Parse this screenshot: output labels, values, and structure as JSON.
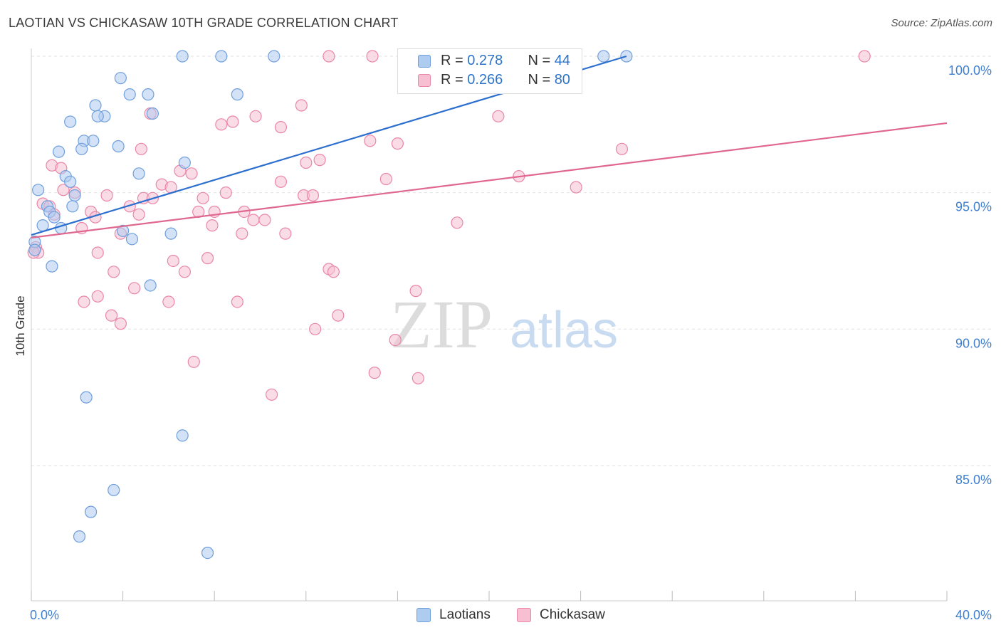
{
  "header": {
    "title": "LAOTIAN VS CHICKASAW 10TH GRADE CORRELATION CHART",
    "source": "Source: ZipAtlas.com"
  },
  "watermark": {
    "zip": "ZIP",
    "atlas": "atlas"
  },
  "legend_top": {
    "rows": [
      {
        "r_label": "R = ",
        "r_value": "0.278",
        "n_label": "N = ",
        "n_value": "44"
      },
      {
        "r_label": "R = ",
        "r_value": "0.266",
        "n_label": "N = ",
        "n_value": "80"
      }
    ]
  },
  "legend_bottom": {
    "items": [
      {
        "label": "Laotians"
      },
      {
        "label": "Chickasaw"
      }
    ]
  },
  "colors": {
    "blue_fill": "#aecbf0",
    "blue_stroke": "#6f9fdc",
    "blue_line": "#2c6fcf",
    "pink_fill": "#f6c0d2",
    "pink_stroke": "#ea86a8",
    "pink_line": "#e0688f",
    "axis_label": "#3f7fd0",
    "grid": "#e2e2e2"
  },
  "chart_data": {
    "type": "scatter",
    "title": "LAOTIAN VS CHICKASAW 10TH GRADE CORRELATION CHART",
    "xlabel": "",
    "ylabel": "10th Grade",
    "xlim": [
      0,
      40
    ],
    "ylim": [
      80.5,
      101
    ],
    "x_tick_labels": [
      {
        "value": 0,
        "label": "0.0%"
      },
      {
        "value": 40,
        "label": "40.0%"
      }
    ],
    "y_tick_labels": [
      {
        "value": 85,
        "label": "85.0%"
      },
      {
        "value": 90,
        "label": "90.0%"
      },
      {
        "value": 95,
        "label": "95.0%"
      },
      {
        "value": 100,
        "label": "100.0%"
      }
    ],
    "grid": true,
    "series": [
      {
        "name": "Laotians",
        "R": 0.278,
        "N": 44,
        "trend": {
          "x": [
            0,
            26.0
          ],
          "y": [
            93.45,
            100.0
          ]
        },
        "points": [
          [
            6.6,
            100.0
          ],
          [
            8.3,
            100.0
          ],
          [
            10.6,
            100.0
          ],
          [
            25.0,
            100.0
          ],
          [
            26.0,
            100.0
          ],
          [
            3.9,
            99.2
          ],
          [
            4.3,
            98.6
          ],
          [
            5.1,
            98.6
          ],
          [
            9.0,
            98.6
          ],
          [
            2.8,
            98.2
          ],
          [
            3.2,
            97.8
          ],
          [
            5.3,
            97.9
          ],
          [
            2.9,
            97.8
          ],
          [
            1.7,
            97.6
          ],
          [
            2.3,
            96.9
          ],
          [
            2.7,
            96.9
          ],
          [
            3.8,
            96.7
          ],
          [
            1.2,
            96.5
          ],
          [
            2.2,
            96.6
          ],
          [
            6.7,
            96.1
          ],
          [
            4.7,
            95.7
          ],
          [
            1.5,
            95.6
          ],
          [
            1.7,
            95.4
          ],
          [
            0.3,
            95.1
          ],
          [
            1.9,
            94.9
          ],
          [
            0.7,
            94.5
          ],
          [
            0.8,
            94.3
          ],
          [
            1.0,
            94.1
          ],
          [
            1.8,
            94.5
          ],
          [
            0.5,
            93.8
          ],
          [
            1.3,
            93.7
          ],
          [
            4.0,
            93.6
          ],
          [
            6.1,
            93.5
          ],
          [
            4.4,
            93.3
          ],
          [
            0.15,
            93.2
          ],
          [
            0.15,
            92.9
          ],
          [
            0.9,
            92.3
          ],
          [
            5.2,
            91.6
          ],
          [
            2.4,
            87.5
          ],
          [
            6.6,
            86.1
          ],
          [
            3.6,
            84.1
          ],
          [
            2.6,
            83.3
          ],
          [
            2.1,
            82.4
          ],
          [
            7.7,
            81.8
          ]
        ]
      },
      {
        "name": "Chickasaw",
        "R": 0.266,
        "N": 80,
        "trend": {
          "x": [
            0,
            40
          ],
          "y": [
            93.35,
            97.55
          ]
        },
        "points": [
          [
            13.0,
            100.0
          ],
          [
            14.9,
            100.0
          ],
          [
            21.4,
            100.0
          ],
          [
            36.4,
            100.0
          ],
          [
            11.8,
            98.2
          ],
          [
            5.2,
            97.9
          ],
          [
            9.8,
            97.8
          ],
          [
            20.4,
            97.8
          ],
          [
            8.3,
            97.5
          ],
          [
            8.8,
            97.6
          ],
          [
            10.9,
            97.4
          ],
          [
            14.8,
            96.9
          ],
          [
            16.0,
            96.8
          ],
          [
            4.8,
            96.6
          ],
          [
            25.8,
            96.6
          ],
          [
            12.0,
            96.1
          ],
          [
            0.9,
            96.0
          ],
          [
            1.3,
            95.9
          ],
          [
            6.5,
            95.8
          ],
          [
            7.0,
            95.7
          ],
          [
            21.3,
            95.6
          ],
          [
            15.5,
            95.5
          ],
          [
            10.9,
            95.4
          ],
          [
            5.7,
            95.3
          ],
          [
            6.1,
            95.2
          ],
          [
            23.8,
            95.2
          ],
          [
            1.4,
            95.1
          ],
          [
            1.9,
            95.0
          ],
          [
            3.3,
            94.9
          ],
          [
            8.5,
            95.0
          ],
          [
            11.9,
            94.9
          ],
          [
            4.9,
            94.8
          ],
          [
            12.3,
            94.9
          ],
          [
            5.3,
            94.8
          ],
          [
            7.5,
            94.8
          ],
          [
            0.5,
            94.6
          ],
          [
            0.8,
            94.5
          ],
          [
            4.3,
            94.5
          ],
          [
            7.3,
            94.3
          ],
          [
            8.0,
            94.3
          ],
          [
            9.3,
            94.3
          ],
          [
            2.6,
            94.3
          ],
          [
            1.0,
            94.2
          ],
          [
            2.8,
            94.1
          ],
          [
            4.7,
            94.2
          ],
          [
            9.7,
            94.0
          ],
          [
            10.2,
            94.0
          ],
          [
            18.6,
            93.9
          ],
          [
            7.9,
            93.8
          ],
          [
            2.2,
            93.7
          ],
          [
            3.9,
            93.5
          ],
          [
            9.2,
            93.5
          ],
          [
            11.1,
            93.5
          ],
          [
            0.2,
            93.0
          ],
          [
            0.3,
            92.8
          ],
          [
            2.9,
            92.8
          ],
          [
            7.7,
            92.6
          ],
          [
            6.2,
            92.5
          ],
          [
            13.0,
            92.2
          ],
          [
            13.2,
            92.1
          ],
          [
            3.6,
            92.1
          ],
          [
            6.7,
            92.1
          ],
          [
            4.5,
            91.5
          ],
          [
            16.8,
            91.4
          ],
          [
            2.9,
            91.2
          ],
          [
            2.3,
            91.0
          ],
          [
            6.0,
            91.0
          ],
          [
            9.0,
            91.0
          ],
          [
            3.5,
            90.5
          ],
          [
            13.4,
            90.5
          ],
          [
            3.9,
            90.2
          ],
          [
            12.4,
            90.0
          ],
          [
            15.9,
            89.6
          ],
          [
            7.1,
            88.8
          ],
          [
            15.0,
            88.4
          ],
          [
            16.9,
            88.2
          ],
          [
            10.5,
            87.6
          ],
          [
            0.1,
            92.8
          ],
          [
            19.9,
            100.0
          ],
          [
            12.6,
            96.2
          ]
        ]
      }
    ]
  }
}
